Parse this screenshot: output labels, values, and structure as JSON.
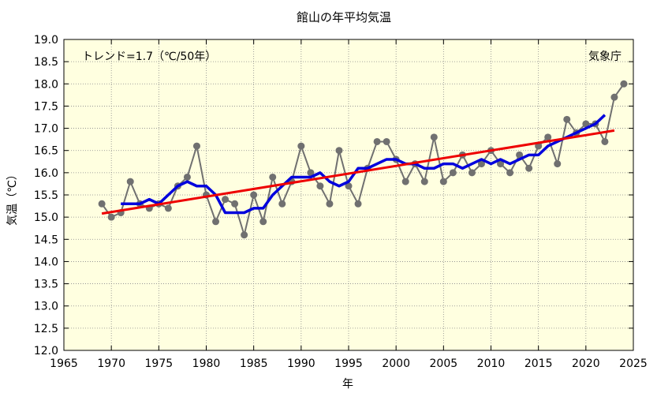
{
  "chart_data": {
    "type": "line",
    "title": "館山の年平均気温",
    "xlabel": "年",
    "ylabel": "気温（℃）",
    "trend_label": "トレンド=1.7（℃/50年）",
    "source_label": "気象庁",
    "xlim": [
      1965,
      2025
    ],
    "ylim": [
      12.0,
      19.0
    ],
    "x_ticks": [
      "1965",
      "1970",
      "1975",
      "1980",
      "1985",
      "1990",
      "1995",
      "2000",
      "2005",
      "2010",
      "2015",
      "2020",
      "2025"
    ],
    "y_ticks": [
      "12.0",
      "12.5",
      "13.0",
      "13.5",
      "14.0",
      "14.5",
      "15.0",
      "15.5",
      "16.0",
      "16.5",
      "17.0",
      "17.5",
      "18.0",
      "18.5",
      "19.0"
    ],
    "grid": true,
    "background": "#ffffe0",
    "colors": {
      "annual": "#707070",
      "moving_average": "#0000dd",
      "trend": "#ee0000"
    },
    "series": [
      {
        "key": "annual",
        "x": [
          1969,
          1970,
          1971,
          1972,
          1973,
          1974,
          1975,
          1976,
          1977,
          1978,
          1979,
          1980,
          1981,
          1982,
          1983,
          1984,
          1985,
          1986,
          1987,
          1988,
          1989,
          1990,
          1991,
          1992,
          1993,
          1994,
          1995,
          1996,
          1997,
          1998,
          1999,
          2000,
          2001,
          2002,
          2003,
          2004,
          2005,
          2006,
          2007,
          2008,
          2009,
          2010,
          2011,
          2012,
          2013,
          2014,
          2015,
          2016,
          2017,
          2018,
          2019,
          2020,
          2021,
          2022,
          2023,
          2024
        ],
        "values": [
          15.3,
          15.0,
          15.1,
          15.8,
          15.3,
          15.2,
          15.3,
          15.2,
          15.7,
          15.9,
          16.6,
          15.5,
          14.9,
          15.4,
          15.3,
          14.6,
          15.5,
          14.9,
          15.9,
          15.3,
          15.8,
          16.6,
          16.0,
          15.7,
          15.3,
          16.5,
          15.7,
          15.3,
          16.1,
          16.7,
          16.7,
          16.3,
          15.8,
          16.2,
          15.8,
          16.8,
          15.8,
          16.0,
          16.4,
          16.0,
          16.2,
          16.5,
          16.2,
          16.0,
          16.4,
          16.1,
          16.6,
          16.8,
          16.2,
          17.2,
          16.9,
          17.1,
          17.1,
          16.7,
          17.7,
          18.0
        ]
      },
      {
        "key": "moving_average",
        "x": [
          1971,
          1972,
          1973,
          1974,
          1975,
          1976,
          1977,
          1978,
          1979,
          1980,
          1981,
          1982,
          1983,
          1984,
          1985,
          1986,
          1987,
          1988,
          1989,
          1990,
          1991,
          1992,
          1993,
          1994,
          1995,
          1996,
          1997,
          1998,
          1999,
          2000,
          2001,
          2002,
          2003,
          2004,
          2005,
          2006,
          2007,
          2008,
          2009,
          2010,
          2011,
          2012,
          2013,
          2014,
          2015,
          2016,
          2017,
          2018,
          2019,
          2020,
          2021,
          2022
        ],
        "values": [
          15.3,
          15.3,
          15.3,
          15.4,
          15.3,
          15.5,
          15.7,
          15.8,
          15.7,
          15.7,
          15.5,
          15.1,
          15.1,
          15.1,
          15.2,
          15.2,
          15.5,
          15.7,
          15.9,
          15.9,
          15.9,
          16.0,
          15.8,
          15.7,
          15.8,
          16.1,
          16.1,
          16.2,
          16.3,
          16.3,
          16.2,
          16.2,
          16.1,
          16.1,
          16.2,
          16.2,
          16.1,
          16.2,
          16.3,
          16.2,
          16.3,
          16.2,
          16.3,
          16.4,
          16.4,
          16.6,
          16.7,
          16.8,
          16.9,
          17.0,
          17.1,
          17.3
        ]
      },
      {
        "key": "trend",
        "x": [
          1969,
          2023
        ],
        "values": [
          15.08,
          16.95
        ]
      }
    ]
  }
}
